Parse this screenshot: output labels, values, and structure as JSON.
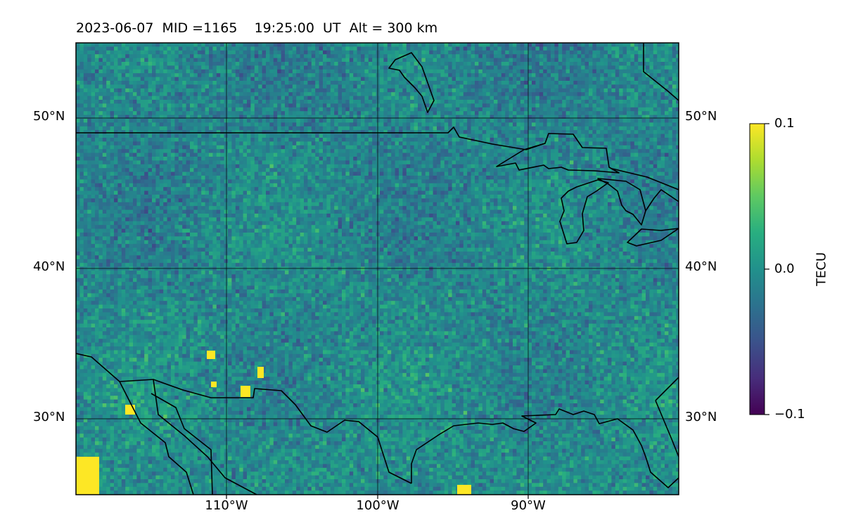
{
  "title": "2023-06-07  MID =1165    19:25:00  UT  Alt = 300 km",
  "latitude_labels": [
    "50°N",
    "40°N",
    "30°N"
  ],
  "longitude_labels": [
    "110°W",
    "100°W",
    "90°W"
  ],
  "colorbar": {
    "label": "TECU",
    "ticks": [
      "0.1",
      "0.0",
      "−0.1"
    ],
    "colormap": "viridis",
    "min": -0.1,
    "max": 0.1
  },
  "map": {
    "lon_range": [
      -120,
      -80
    ],
    "lat_range": [
      25,
      55
    ],
    "gridlines": true,
    "field": "TEC perturbation"
  }
}
